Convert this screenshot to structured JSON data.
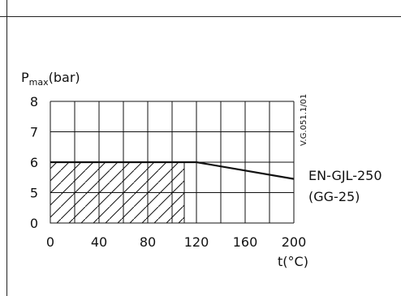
{
  "chart_data": {
    "type": "line",
    "y_axis_label_main": "P",
    "y_axis_label_sub": "max",
    "y_axis_label_unit": "(bar)",
    "x_axis_label": "t(°C)",
    "x_ticks": [
      "0",
      "40",
      "80",
      "120",
      "160",
      "200"
    ],
    "y_ticks": [
      "0",
      "5",
      "6",
      "7",
      "8"
    ],
    "xlim": [
      0,
      200
    ],
    "y_categories": [
      0,
      5,
      6,
      7,
      8
    ],
    "grid": true,
    "series": [
      {
        "name_line1": "EN-GJL-250",
        "name_line2": "(GG-25)",
        "x": [
          0,
          120,
          200
        ],
        "y": [
          6,
          6,
          5.45
        ]
      }
    ],
    "hatched_region": {
      "x": [
        0,
        110
      ],
      "y": [
        0,
        6
      ]
    },
    "side_note": "V.G.051.1/01"
  }
}
